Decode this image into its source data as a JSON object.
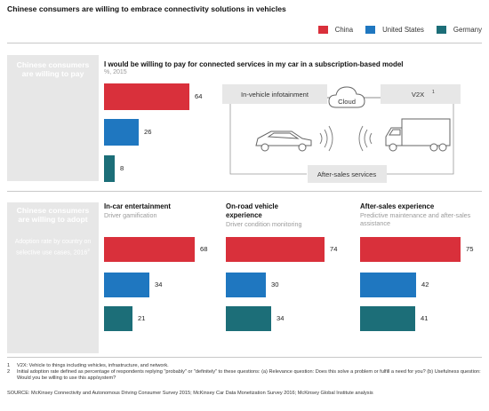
{
  "title": "Chinese consumers are willing to embrace connectivity solutions in vehicles",
  "legend": [
    {
      "name": "China",
      "color": "#d9303b"
    },
    {
      "name": "United States",
      "color": "#1f77c0"
    },
    {
      "name": "Germany",
      "color": "#1c6e78"
    }
  ],
  "section1": {
    "heading": "Chinese consumers are willing to pay",
    "question": "I would be willing to pay for connected services in my car in a subscription-based model",
    "unit": "%, 2015"
  },
  "section2": {
    "heading": "Chinese consumers are willing to adopt",
    "subheading": "Adoption rate by country on selective use cases, 2016",
    "subheading_sup": "2",
    "segments": [
      {
        "title": "In-car entertainment",
        "subtitle": "Driver gamification"
      },
      {
        "title": "On-road vehicle experience",
        "subtitle": "Driver condition monitoring"
      },
      {
        "title": "After-sales experience",
        "subtitle": "Predictive maintenance and after-sales assistance"
      }
    ]
  },
  "diagram": {
    "infotainment": "In-vehicle infotainment",
    "cloud": "Cloud",
    "v2x": "V2X",
    "v2x_sup": "1",
    "aftersales": "After-sales services",
    "car_icon": "car-icon",
    "truck_icon": "truck-icon",
    "cloud_icon": "cloud-icon",
    "signal_icon": "wireless-signal-icon"
  },
  "chart_data": [
    {
      "type": "bar",
      "title": "I would be willing to pay for connected services in my car in a subscription-based model",
      "unit": "%, 2015",
      "orientation": "horizontal",
      "categories": [
        "China",
        "United States",
        "Germany"
      ],
      "values": [
        64,
        26,
        8
      ],
      "xlim": [
        0,
        100
      ]
    },
    {
      "type": "bar",
      "title": "In-car entertainment",
      "subtitle": "Driver gamification",
      "orientation": "horizontal",
      "categories": [
        "China",
        "United States",
        "Germany"
      ],
      "values": [
        68,
        34,
        21
      ],
      "xlim": [
        0,
        100
      ]
    },
    {
      "type": "bar",
      "title": "On-road vehicle experience",
      "subtitle": "Driver condition monitoring",
      "orientation": "horizontal",
      "categories": [
        "China",
        "United States",
        "Germany"
      ],
      "values": [
        74,
        30,
        34
      ],
      "xlim": [
        0,
        100
      ]
    },
    {
      "type": "bar",
      "title": "After-sales experience",
      "subtitle": "Predictive maintenance and after-sales assistance",
      "orientation": "horizontal",
      "categories": [
        "China",
        "United States",
        "Germany"
      ],
      "values": [
        75,
        42,
        41
      ],
      "xlim": [
        0,
        100
      ]
    }
  ],
  "footnotes": [
    {
      "num": "1",
      "text": "V2X: Vehicle to things including vehicles, infrastructure, and network."
    },
    {
      "num": "2",
      "text": "Initial adoption rate defined as percentage of respondents replying \"probably\" or \"definitely\" to these questions: (a) Relevance question: Does this solve a problem or fulfill a need for you? (b) Usefulness question: Would you be willing to use this app/system?"
    }
  ],
  "source": "SOURCE: McKinsey Connectivity and Autonomous Driving Consumer Survey 2015; McKinsey Car Data Monetization Survey 2016; McKinsey Global Institute analysis"
}
